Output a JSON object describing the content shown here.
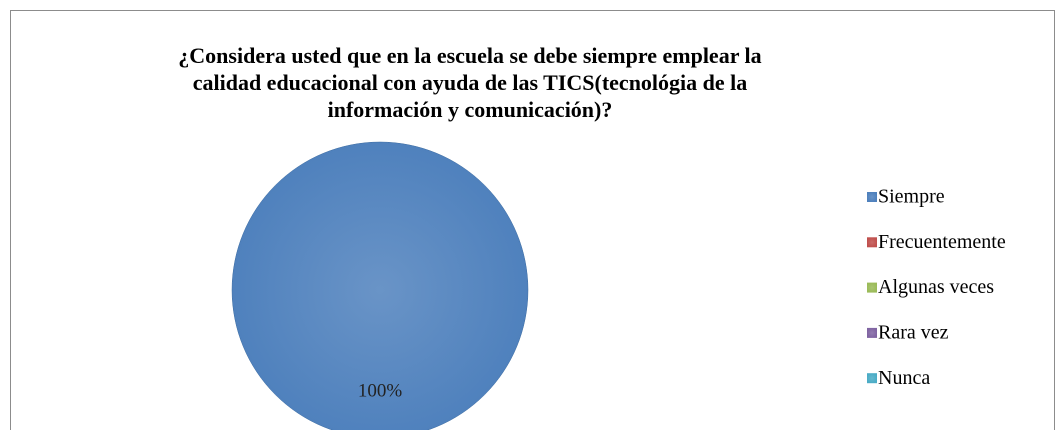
{
  "chart_data": {
    "type": "pie",
    "title": "¿Considera usted que en la escuela se debe siempre emplear la calidad educacional con ayuda  de las TICS(tecnológia de la información y comunicación)?",
    "categories": [
      "Siempre",
      "Frecuentemente",
      "Algunas veces",
      "Rara vez",
      "Nunca"
    ],
    "values": [
      100,
      0,
      0,
      0,
      0
    ],
    "value_labels": [
      "100%",
      null,
      null,
      null,
      null
    ],
    "colors": [
      "#4f81bd",
      "#c0504d",
      "#9bbb59",
      "#8064a2",
      "#4bacc6"
    ],
    "legend": "right"
  }
}
